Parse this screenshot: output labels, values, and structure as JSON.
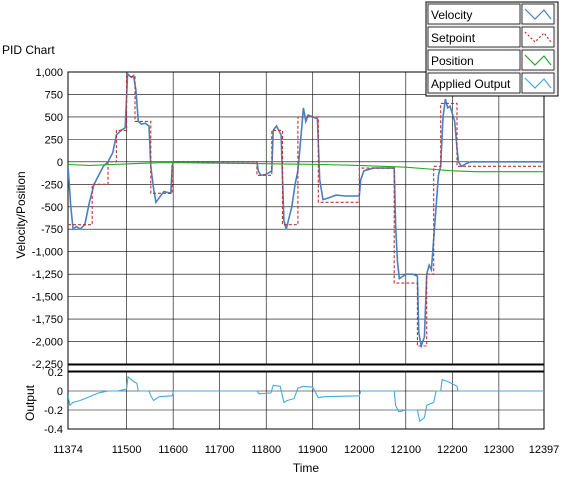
{
  "chart_data": {
    "type": "line",
    "title": "PID Chart",
    "xlabel": "Time",
    "xlim": [
      11374,
      12397
    ],
    "xticks": [
      11374,
      11500,
      11600,
      11700,
      11800,
      11900,
      12000,
      12100,
      12200,
      12300,
      12397
    ],
    "legend_position": "top-right",
    "grid": true,
    "colors": {
      "velocity": "#4a7fc1",
      "setpoint": "#c03030",
      "position": "#22aa22",
      "applied_output": "#44aadd"
    },
    "panels": [
      {
        "name": "upper",
        "ylabel": "Velocity/Position",
        "ylim": [
          -2250,
          1000
        ],
        "yticks": [
          1000,
          750,
          500,
          250,
          0,
          -250,
          -500,
          -750,
          -1000,
          -1250,
          -1500,
          -1750,
          -2000,
          -2250
        ],
        "series": [
          {
            "name": "Velocity",
            "style": "solid",
            "points": [
              [
                11374,
                -50
              ],
              [
                11380,
                -500
              ],
              [
                11385,
                -750
              ],
              [
                11392,
                -720
              ],
              [
                11400,
                -750
              ],
              [
                11410,
                -700
              ],
              [
                11420,
                -450
              ],
              [
                11430,
                -250
              ],
              [
                11440,
                -150
              ],
              [
                11450,
                -50
              ],
              [
                11460,
                0
              ],
              [
                11470,
                100
              ],
              [
                11478,
                300
              ],
              [
                11488,
                350
              ],
              [
                11497,
                380
              ],
              [
                11502,
                980
              ],
              [
                11510,
                940
              ],
              [
                11515,
                960
              ],
              [
                11520,
                800
              ],
              [
                11525,
                450
              ],
              [
                11532,
                420
              ],
              [
                11540,
                430
              ],
              [
                11548,
                400
              ],
              [
                11552,
                -50
              ],
              [
                11558,
                -300
              ],
              [
                11563,
                -450
              ],
              [
                11570,
                -400
              ],
              [
                11580,
                -330
              ],
              [
                11595,
                -350
              ],
              [
                11598,
                -50
              ],
              [
                11601,
                0
              ],
              [
                11700,
                0
              ],
              [
                11780,
                0
              ],
              [
                11783,
                -100
              ],
              [
                11788,
                -150
              ],
              [
                11800,
                -140
              ],
              [
                11812,
                -100
              ],
              [
                11815,
                350
              ],
              [
                11822,
                400
              ],
              [
                11832,
                300
              ],
              [
                11838,
                -650
              ],
              [
                11843,
                -750
              ],
              [
                11855,
                -500
              ],
              [
                11862,
                -250
              ],
              [
                11868,
                -100
              ],
              [
                11875,
                300
              ],
              [
                11880,
                600
              ],
              [
                11885,
                450
              ],
              [
                11890,
                520
              ],
              [
                11900,
                500
              ],
              [
                11910,
                480
              ],
              [
                11915,
                -200
              ],
              [
                11922,
                -420
              ],
              [
                11935,
                -400
              ],
              [
                11950,
                -370
              ],
              [
                11970,
                -380
              ],
              [
                11985,
                -380
              ],
              [
                12000,
                -380
              ],
              [
                12003,
                -200
              ],
              [
                12010,
                -100
              ],
              [
                12030,
                -70
              ],
              [
                12055,
                -70
              ],
              [
                12075,
                -70
              ],
              [
                12078,
                -700
              ],
              [
                12082,
                -1100
              ],
              [
                12086,
                -1300
              ],
              [
                12100,
                -1250
              ],
              [
                12115,
                -1250
              ],
              [
                12125,
                -1270
              ],
              [
                12128,
                -1900
              ],
              [
                12133,
                -2050
              ],
              [
                12140,
                -1950
              ],
              [
                12145,
                -1250
              ],
              [
                12150,
                -1150
              ],
              [
                12155,
                -1200
              ],
              [
                12165,
                -500
              ],
              [
                12170,
                -150
              ],
              [
                12175,
                -50
              ],
              [
                12180,
                500
              ],
              [
                12185,
                700
              ],
              [
                12190,
                600
              ],
              [
                12195,
                620
              ],
              [
                12205,
                450
              ],
              [
                12210,
                150
              ],
              [
                12213,
                0
              ],
              [
                12220,
                -50
              ],
              [
                12230,
                -20
              ],
              [
                12240,
                0
              ],
              [
                12397,
                0
              ]
            ]
          },
          {
            "name": "Setpoint",
            "style": "dashed",
            "points": [
              [
                11374,
                -700
              ],
              [
                11426,
                -700
              ],
              [
                11426,
                -250
              ],
              [
                11460,
                -250
              ],
              [
                11460,
                0
              ],
              [
                11478,
                0
              ],
              [
                11478,
                350
              ],
              [
                11500,
                350
              ],
              [
                11500,
                950
              ],
              [
                11518,
                950
              ],
              [
                11518,
                450
              ],
              [
                11552,
                450
              ],
              [
                11552,
                -350
              ],
              [
                11598,
                -350
              ],
              [
                11598,
                0
              ],
              [
                11780,
                0
              ],
              [
                11780,
                -150
              ],
              [
                11812,
                -150
              ],
              [
                11812,
                350
              ],
              [
                11835,
                350
              ],
              [
                11835,
                -700
              ],
              [
                11868,
                -700
              ],
              [
                11868,
                500
              ],
              [
                11912,
                500
              ],
              [
                11912,
                -450
              ],
              [
                12000,
                -450
              ],
              [
                12000,
                -70
              ],
              [
                12075,
                -70
              ],
              [
                12075,
                -1350
              ],
              [
                12125,
                -1350
              ],
              [
                12125,
                -2050
              ],
              [
                12145,
                -2050
              ],
              [
                12145,
                -1250
              ],
              [
                12160,
                -1250
              ],
              [
                12160,
                -50
              ],
              [
                12175,
                -50
              ],
              [
                12175,
                650
              ],
              [
                12210,
                650
              ],
              [
                12210,
                -50
              ],
              [
                12397,
                -50
              ]
            ]
          },
          {
            "name": "Position",
            "style": "solid",
            "points": [
              [
                11374,
                -30
              ],
              [
                11420,
                -40
              ],
              [
                11470,
                -30
              ],
              [
                11520,
                -20
              ],
              [
                11570,
                -10
              ],
              [
                11620,
                -10
              ],
              [
                11700,
                -15
              ],
              [
                11780,
                -20
              ],
              [
                11850,
                -25
              ],
              [
                11920,
                -30
              ],
              [
                12000,
                -40
              ],
              [
                12050,
                -50
              ],
              [
                12100,
                -60
              ],
              [
                12150,
                -80
              ],
              [
                12200,
                -100
              ],
              [
                12250,
                -110
              ],
              [
                12300,
                -110
              ],
              [
                12397,
                -110
              ]
            ]
          }
        ]
      },
      {
        "name": "lower",
        "ylabel": "Output",
        "ylim": [
          -0.4,
          0.2
        ],
        "yticks": [
          0.2,
          0,
          -0.2,
          -0.4
        ],
        "series": [
          {
            "name": "Applied Output",
            "style": "solid",
            "points": [
              [
                11374,
                -0.05
              ],
              [
                11378,
                -0.15
              ],
              [
                11385,
                -0.12
              ],
              [
                11400,
                -0.1
              ],
              [
                11420,
                -0.06
              ],
              [
                11440,
                -0.02
              ],
              [
                11460,
                0.0
              ],
              [
                11480,
                0.0
              ],
              [
                11500,
                0.02
              ],
              [
                11503,
                0.15
              ],
              [
                11515,
                0.1
              ],
              [
                11522,
                0.08
              ],
              [
                11525,
                0.0
              ],
              [
                11548,
                0.0
              ],
              [
                11552,
                -0.05
              ],
              [
                11558,
                -0.1
              ],
              [
                11570,
                -0.06
              ],
              [
                11598,
                -0.05
              ],
              [
                11601,
                0
              ],
              [
                11780,
                0
              ],
              [
                11785,
                -0.03
              ],
              [
                11810,
                -0.02
              ],
              [
                11815,
                0.06
              ],
              [
                11830,
                0.05
              ],
              [
                11838,
                -0.12
              ],
              [
                11845,
                -0.1
              ],
              [
                11860,
                -0.08
              ],
              [
                11868,
                0.03
              ],
              [
                11880,
                0.05
              ],
              [
                11900,
                0.04
              ],
              [
                11912,
                -0.07
              ],
              [
                11925,
                -0.06
              ],
              [
                12000,
                -0.05
              ],
              [
                12003,
                0.0
              ],
              [
                12075,
                0.0
              ],
              [
                12078,
                -0.15
              ],
              [
                12085,
                -0.22
              ],
              [
                12100,
                -0.2
              ],
              [
                12125,
                -0.2
              ],
              [
                12130,
                -0.32
              ],
              [
                12140,
                -0.28
              ],
              [
                12145,
                -0.15
              ],
              [
                12160,
                -0.12
              ],
              [
                12165,
                0.0
              ],
              [
                12175,
                0.0
              ],
              [
                12178,
                0.12
              ],
              [
                12190,
                0.1
              ],
              [
                12210,
                0.05
              ],
              [
                12212,
                0.0
              ],
              [
                12397,
                0.0
              ]
            ]
          }
        ]
      }
    ]
  }
}
